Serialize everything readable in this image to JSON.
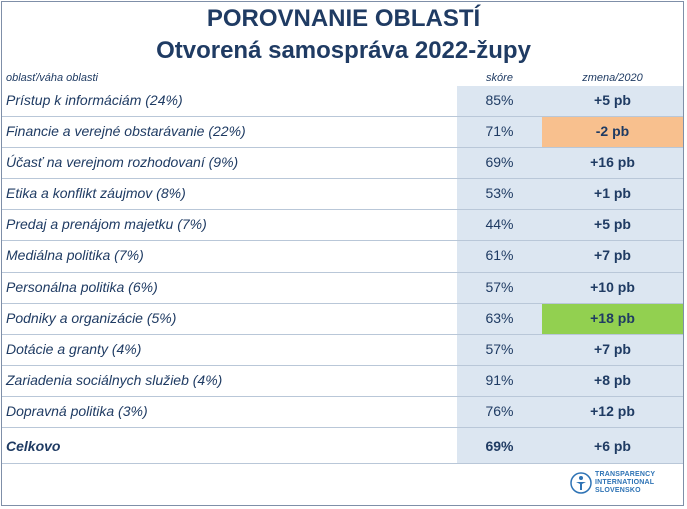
{
  "title_line1": "POROVNANIE OBLASTÍ",
  "title_line2": "Otvorená samospráva 2022-župy",
  "headers": {
    "area": "oblasť/váha oblasti",
    "score": "skóre",
    "change": "zmena/2020"
  },
  "rows": [
    {
      "area": "Prístup k informáciám (24%)",
      "score": "85%",
      "change": "+5 pb"
    },
    {
      "area": "Financie a verejné obstarávanie (22%)",
      "score": "71%",
      "change": "-2 pb"
    },
    {
      "area": "Účasť na verejnom rozhodovaní (9%)",
      "score": "69%",
      "change": "+16 pb"
    },
    {
      "area": "Etika a konflikt záujmov (8%)",
      "score": "53%",
      "change": "+1 pb"
    },
    {
      "area": "Predaj a prenájom majetku (7%)",
      "score": "44%",
      "change": "+5 pb"
    },
    {
      "area": "Mediálna politika (7%)",
      "score": "61%",
      "change": "+7 pb"
    },
    {
      "area": "Personálna politika (6%)",
      "score": "57%",
      "change": "+10 pb"
    },
    {
      "area": "Podniky a organizácie (5%)",
      "score": "63%",
      "change": "+18 pb"
    },
    {
      "area": "Dotácie a granty (4%)",
      "score": "57%",
      "change": "+7 pb"
    },
    {
      "area": "Zariadenia sociálnych služieb (4%)",
      "score": "91%",
      "change": "+8 pb"
    },
    {
      "area": "Dopravná politika (3%)",
      "score": "76%",
      "change": "+12 pb"
    }
  ],
  "total": {
    "area": "Celkovo",
    "score": "69%",
    "change": "+6 pb"
  },
  "logo": {
    "line1": "TRANSPARENCY",
    "line2": "INTERNATIONAL",
    "line3": "SLOVENSKO"
  },
  "colors": {
    "navy": "#1f3b63",
    "cell_bg": "#dce6f1",
    "negative": "#f8c08e",
    "best": "#92d050",
    "logo_blue": "#2e73b5"
  }
}
